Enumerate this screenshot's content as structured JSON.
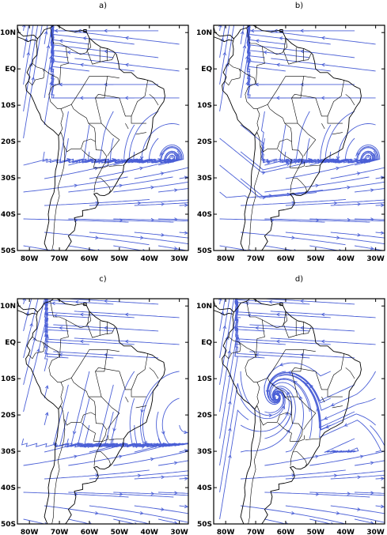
{
  "colors": {
    "streamline": "#4a5fd6",
    "coast": "#000000",
    "background": "#ffffff"
  },
  "x_ticks": [
    "80W",
    "70W",
    "60W",
    "50W",
    "40W",
    "30W"
  ],
  "y_ticks": [
    "10N",
    "EQ",
    "10S",
    "20S",
    "30S",
    "40S",
    "50S"
  ],
  "panels": [
    {
      "id": "a",
      "label": "a)"
    },
    {
      "id": "b",
      "label": "b)"
    },
    {
      "id": "c",
      "label": "c)"
    },
    {
      "id": "d",
      "label": "d)"
    }
  ]
}
